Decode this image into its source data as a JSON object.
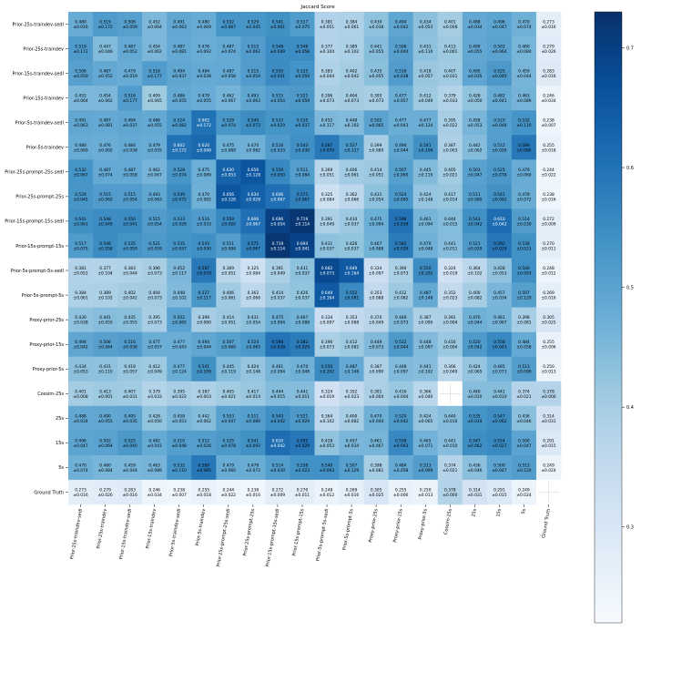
{
  "chart_data": {
    "type": "heatmap",
    "title": "Jaccard Score",
    "labels": [
      "Prior-25s-traindev-sedl",
      "Prior-25s-traindev",
      "Prior-15s-traindev-sedl",
      "Prior-15s-traindev",
      "Prior-5s-traindev-sedl",
      "Prior-5s-traindev",
      "Prior-25s-prompt-25s-sedl",
      "Prior-25s-prompt-25s",
      "Prior-15s-prompt-15s-sedl",
      "Prior-15s-prompt-15s",
      "Prior-5s-prompt-5s-sedl",
      "Prior-5s-prompt-5s",
      "Proxy-prior-25s",
      "Proxy-prior-15s",
      "Proxy-prior-5s",
      "Cossim-25s",
      "25s",
      "15s",
      "5s",
      "Ground Truth"
    ],
    "mean": [
      [
        0.48,
        0.519,
        0.506,
        0.452,
        0.491,
        0.48,
        0.532,
        0.529,
        0.541,
        0.517,
        0.381,
        0.384,
        0.43,
        0.494,
        0.434,
        0.401,
        0.488,
        0.496,
        0.47,
        0.273
      ],
      [
        0.519,
        0.447,
        0.487,
        0.454,
        0.487,
        0.476,
        0.487,
        0.515,
        0.548,
        0.548,
        0.377,
        0.389,
        0.441,
        0.506,
        0.431,
        0.413,
        0.49,
        0.502,
        0.46,
        0.279
      ],
      [
        0.506,
        0.487,
        0.479,
        0.516,
        0.494,
        0.484,
        0.487,
        0.515,
        0.55,
        0.535,
        0.383,
        0.402,
        0.435,
        0.516,
        0.418,
        0.407,
        0.495,
        0.525,
        0.459,
        0.283
      ],
      [
        0.452,
        0.454,
        0.516,
        0.409,
        0.486,
        0.479,
        0.462,
        0.493,
        0.515,
        0.521,
        0.396,
        0.404,
        0.395,
        0.477,
        0.412,
        0.379,
        0.428,
        0.482,
        0.463,
        0.246
      ],
      [
        0.491,
        0.487,
        0.494,
        0.486,
        0.524,
        0.602,
        0.528,
        0.549,
        0.533,
        0.535,
        0.452,
        0.448,
        0.502,
        0.477,
        0.477,
        0.395,
        0.458,
        0.51,
        0.532,
        0.238
      ],
      [
        0.48,
        0.476,
        0.484,
        0.479,
        0.602,
        0.62,
        0.475,
        0.47,
        0.516,
        0.543,
        0.587,
        0.527,
        0.399,
        0.494,
        0.541,
        0.387,
        0.442,
        0.512,
        0.589,
        0.255
      ],
      [
        0.532,
        0.487,
        0.487,
        0.462,
        0.528,
        0.475,
        0.63,
        0.656,
        0.559,
        0.511,
        0.369,
        0.406,
        0.414,
        0.507,
        0.445,
        0.405,
        0.503,
        0.525,
        0.479,
        0.244
      ],
      [
        0.529,
        0.515,
        0.515,
        0.493,
        0.549,
        0.47,
        0.656,
        0.634,
        0.606,
        0.571,
        0.325,
        0.362,
        0.431,
        0.524,
        0.424,
        0.417,
        0.511,
        0.541,
        0.478,
        0.238
      ],
      [
        0.541,
        0.548,
        0.55,
        0.515,
        0.533,
        0.516,
        0.559,
        0.606,
        0.696,
        0.719,
        0.391,
        0.414,
        0.475,
        0.598,
        0.461,
        0.444,
        0.543,
        0.61,
        0.514,
        0.272
      ],
      [
        0.517,
        0.548,
        0.535,
        0.521,
        0.535,
        0.543,
        0.511,
        0.571,
        0.719,
        0.694,
        0.431,
        0.426,
        0.467,
        0.582,
        0.47,
        0.441,
        0.521,
        0.592,
        0.538,
        0.27
      ],
      [
        0.381,
        0.377,
        0.383,
        0.396,
        0.452,
        0.587,
        0.369,
        0.325,
        0.391,
        0.431,
        0.682,
        0.649,
        0.334,
        0.39,
        0.55,
        0.324,
        0.364,
        0.428,
        0.54,
        0.248
      ],
      [
        0.384,
        0.389,
        0.402,
        0.404,
        0.448,
        0.527,
        0.406,
        0.362,
        0.414,
        0.426,
        0.649,
        0.552,
        0.353,
        0.412,
        0.487,
        0.352,
        0.4,
        0.457,
        0.507,
        0.269
      ],
      [
        0.43,
        0.441,
        0.435,
        0.395,
        0.502,
        0.399,
        0.414,
        0.431,
        0.475,
        0.467,
        0.334,
        0.353,
        0.37,
        0.449,
        0.387,
        0.391,
        0.47,
        0.461,
        0.398,
        0.305
      ],
      [
        0.494,
        0.506,
        0.516,
        0.477,
        0.477,
        0.494,
        0.507,
        0.524,
        0.598,
        0.582,
        0.39,
        0.412,
        0.449,
        0.522,
        0.448,
        0.416,
        0.52,
        0.558,
        0.484,
        0.255
      ],
      [
        0.434,
        0.431,
        0.418,
        0.412,
        0.477,
        0.541,
        0.445,
        0.424,
        0.461,
        0.47,
        0.55,
        0.487,
        0.387,
        0.448,
        0.441,
        0.366,
        0.424,
        0.465,
        0.513,
        0.25
      ],
      [
        0.401,
        0.413,
        0.407,
        0.379,
        0.395,
        0.387,
        0.405,
        0.417,
        0.444,
        0.441,
        0.324,
        0.352,
        0.391,
        0.416,
        0.366,
        null,
        0.44,
        0.441,
        0.374,
        0.378
      ],
      [
        0.488,
        0.49,
        0.495,
        0.428,
        0.458,
        0.442,
        0.503,
        0.511,
        0.543,
        0.521,
        0.364,
        0.4,
        0.47,
        0.52,
        0.424,
        0.44,
        0.535,
        0.547,
        0.436,
        0.314
      ],
      [
        0.496,
        0.502,
        0.525,
        0.482,
        0.51,
        0.512,
        0.525,
        0.541,
        0.61,
        0.592,
        0.428,
        0.457,
        0.461,
        0.558,
        0.465,
        0.441,
        0.547,
        0.554,
        0.5,
        0.291
      ],
      [
        0.47,
        0.46,
        0.459,
        0.463,
        0.532,
        0.589,
        0.479,
        0.478,
        0.514,
        0.538,
        0.54,
        0.507,
        0.398,
        0.484,
        0.513,
        0.374,
        0.436,
        0.5,
        0.513,
        0.249
      ],
      [
        0.273,
        0.279,
        0.283,
        0.246,
        0.238,
        0.255,
        0.244,
        0.238,
        0.272,
        0.27,
        0.248,
        0.269,
        0.305,
        0.255,
        0.25,
        0.378,
        0.314,
        0.291,
        0.249,
        null
      ]
    ],
    "std": [
      [
        0.016,
        0.172,
        0.059,
        0.064,
        0.063,
        0.069,
        0.067,
        0.045,
        0.061,
        0.075,
        0.051,
        0.061,
        0.038,
        0.042,
        0.053,
        0.008,
        0.034,
        0.047,
        0.074,
        0.016
      ],
      [
        0.172,
        0.046,
        0.052,
        0.062,
        0.081,
        0.092,
        0.074,
        0.062,
        0.049,
        0.058,
        0.104,
        0.102,
        0.055,
        0.044,
        0.11,
        0.001,
        0.055,
        0.064,
        0.084,
        0.026
      ],
      [
        0.059,
        0.052,
        0.019,
        0.177,
        0.037,
        0.038,
        0.058,
        0.054,
        0.041,
        0.059,
        0.044,
        0.042,
        0.055,
        0.038,
        0.057,
        0.031,
        0.035,
        0.04,
        0.044,
        0.016
      ],
      [
        0.064,
        0.062,
        0.177,
        0.065,
        0.055,
        0.055,
        0.067,
        0.063,
        0.054,
        0.059,
        0.073,
        0.073,
        0.073,
        0.057,
        0.049,
        0.033,
        0.05,
        0.041,
        0.089,
        0.034
      ],
      [
        0.063,
        0.081,
        0.037,
        0.055,
        0.082,
        0.172,
        0.074,
        0.072,
        0.029,
        0.037,
        0.117,
        0.102,
        0.065,
        0.043,
        0.124,
        0.022,
        0.053,
        0.048,
        0.11,
        0.007
      ],
      [
        0.069,
        0.092,
        0.038,
        0.055,
        0.172,
        0.048,
        0.089,
        0.082,
        0.033,
        0.03,
        0.07,
        0.117,
        0.08,
        0.044,
        0.109,
        0.003,
        0.062,
        0.026,
        0.085,
        0.018
      ],
      [
        0.067,
        0.074,
        0.058,
        0.067,
        0.074,
        0.089,
        0.053,
        0.128,
        0.05,
        0.084,
        0.051,
        0.061,
        0.051,
        0.06,
        0.119,
        0.021,
        0.047,
        0.078,
        0.06,
        0.022
      ],
      [
        0.045,
        0.062,
        0.054,
        0.063,
        0.072,
        0.082,
        0.128,
        0.028,
        0.067,
        0.067,
        0.084,
        0.066,
        0.054,
        0.065,
        0.148,
        0.014,
        0.08,
        0.092,
        0.072,
        0.016
      ],
      [
        0.061,
        0.049,
        0.041,
        0.054,
        0.029,
        0.033,
        0.05,
        0.067,
        0.054,
        0.114,
        0.049,
        0.037,
        0.094,
        0.039,
        0.094,
        0.015,
        0.042,
        0.042,
        0.03,
        0.009
      ],
      [
        0.075,
        0.058,
        0.059,
        0.059,
        0.037,
        0.03,
        0.084,
        0.067,
        0.114,
        0.041,
        0.037,
        0.037,
        0.088,
        0.029,
        0.048,
        0.011,
        0.029,
        0.029,
        0.023,
        0.011
      ],
      [
        0.051,
        0.104,
        0.044,
        0.073,
        0.117,
        0.07,
        0.051,
        0.084,
        0.049,
        0.037,
        0.073,
        0.164,
        0.097,
        0.073,
        0.202,
        0.019,
        0.102,
        0.053,
        0.093,
        0.012
      ],
      [
        0.061,
        0.102,
        0.042,
        0.073,
        0.102,
        0.117,
        0.061,
        0.066,
        0.037,
        0.037,
        0.164,
        0.081,
        0.088,
        0.082,
        0.148,
        0.023,
        0.082,
        0.034,
        0.129,
        0.016
      ],
      [
        0.038,
        0.055,
        0.055,
        0.073,
        0.065,
        0.08,
        0.051,
        0.054,
        0.094,
        0.088,
        0.097,
        0.088,
        0.049,
        0.073,
        0.09,
        0.004,
        0.044,
        0.067,
        0.081,
        0.025
      ],
      [
        0.042,
        0.044,
        0.038,
        0.057,
        0.043,
        0.044,
        0.06,
        0.065,
        0.039,
        0.029,
        0.073,
        0.082,
        0.073,
        0.044,
        0.097,
        0.004,
        0.042,
        0.043,
        0.058,
        0.006
      ],
      [
        0.053,
        0.11,
        0.057,
        0.049,
        0.124,
        0.109,
        0.119,
        0.148,
        0.094,
        0.048,
        0.202,
        0.148,
        0.09,
        0.097,
        0.192,
        0.04,
        0.065,
        0.071,
        0.099,
        0.013
      ],
      [
        0.008,
        0.001,
        0.031,
        0.033,
        0.022,
        0.003,
        0.021,
        0.014,
        0.015,
        0.011,
        0.019,
        0.023,
        0.004,
        0.004,
        0.04,
        null,
        0.01,
        0.01,
        0.021,
        0.0
      ],
      [
        0.034,
        0.055,
        0.035,
        0.05,
        0.053,
        0.062,
        0.047,
        0.08,
        0.042,
        0.029,
        0.102,
        0.082,
        0.044,
        0.042,
        0.065,
        0.01,
        0.034,
        0.062,
        0.046,
        0.031
      ],
      [
        0.047,
        0.064,
        0.04,
        0.041,
        0.048,
        0.026,
        0.078,
        0.092,
        0.042,
        0.029,
        0.053,
        0.034,
        0.067,
        0.043,
        0.071,
        0.01,
        0.062,
        0.027,
        0.047,
        0.015
      ],
      [
        0.074,
        0.084,
        0.044,
        0.089,
        0.11,
        0.085,
        0.06,
        0.072,
        0.03,
        0.023,
        0.093,
        0.129,
        0.081,
        0.058,
        0.099,
        0.021,
        0.046,
        0.047,
        0.12,
        0.024
      ],
      [
        0.016,
        0.026,
        0.016,
        0.034,
        0.007,
        0.018,
        0.022,
        0.016,
        0.009,
        0.011,
        0.012,
        0.016,
        0.025,
        0.006,
        0.013,
        0.0,
        0.031,
        0.015,
        0.024,
        null
      ]
    ],
    "color_range": [
      0.22,
      0.73
    ],
    "colorbar_ticks": [
      0.3,
      0.4,
      0.5,
      0.6,
      0.7
    ],
    "colormap": "Blues",
    "colormap_stops": [
      "#f7fbff",
      "#deebf7",
      "#c6dbef",
      "#9ecae1",
      "#6baed6",
      "#4292c6",
      "#2171b5",
      "#08519c",
      "#08306b"
    ]
  }
}
